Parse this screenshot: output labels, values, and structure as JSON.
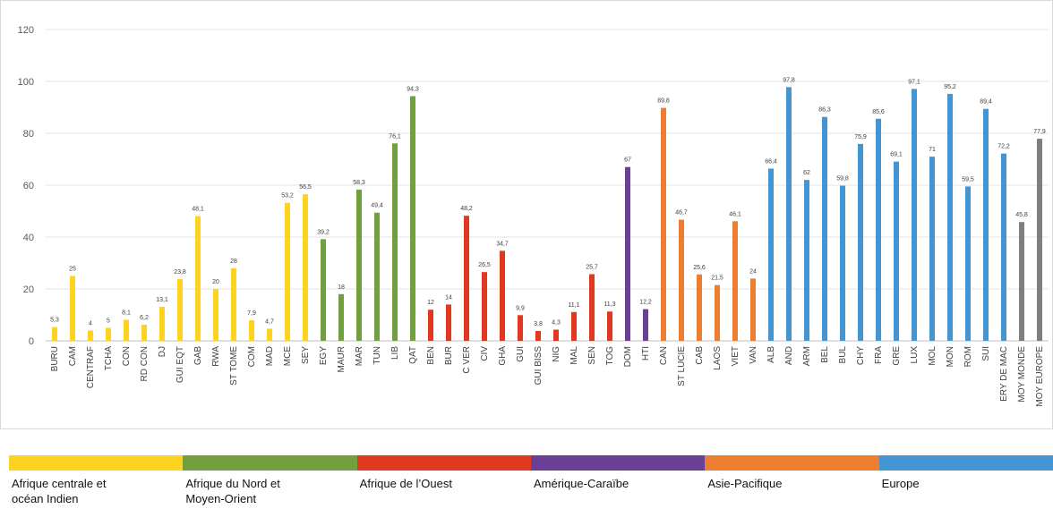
{
  "chart_data": {
    "type": "bar",
    "ylim": [
      0,
      120
    ],
    "y_ticks": [
      "0",
      "20",
      "40",
      "60",
      "80",
      "100",
      "120"
    ],
    "grid": true,
    "categories": [
      "BURU",
      "CAM",
      "CENTRAF",
      "TCHA",
      "CON",
      "RD CON",
      "DJ",
      "GUI EQT",
      "GAB",
      "RWA",
      "ST TOME",
      "COM",
      "MAD",
      "MCE",
      "SEY",
      "EGY",
      "MAUR",
      "MAR",
      "TUN",
      "LIB",
      "QAT",
      "BEN",
      "BUR",
      "C VER",
      "CIV",
      "GHA",
      "GUI",
      "GUI BISS",
      "NIG",
      "MAL",
      "SEN",
      "TOG",
      "DOM",
      "HTI",
      "CAN",
      "ST LUCIE",
      "CAB",
      "LAOS",
      "VIET",
      "VAN",
      "ALB",
      "AND",
      "ARM",
      "BEL",
      "BUL",
      "CHY",
      "FRA",
      "GRE",
      "LUX",
      "MOL",
      "MON",
      "ROM",
      "SUI",
      "ERY DE MAC",
      "MOY MONDE",
      "MOY EUROPE"
    ],
    "values": [
      5.3,
      25,
      4,
      5,
      8.1,
      6.2,
      13.1,
      23.8,
      48.1,
      20,
      28,
      7.9,
      4.7,
      53.2,
      56.5,
      39.2,
      18,
      58.3,
      49.4,
      76.1,
      94.3,
      12,
      14,
      48.2,
      26.5,
      34.7,
      9.9,
      3.8,
      4.3,
      11.1,
      25.7,
      11.3,
      67,
      12.2,
      89.8,
      46.7,
      25.6,
      21.5,
      46.1,
      24,
      66.4,
      97.8,
      62,
      86.3,
      59.8,
      75.9,
      85.6,
      69.1,
      97.1,
      71,
      95.2,
      59.5,
      89.4,
      72.2,
      45.8,
      77.9
    ],
    "labels": [
      "5,3",
      "25",
      "4",
      "5",
      "8,1",
      "6,2",
      "13,1",
      "23,8",
      "48,1",
      "20",
      "28",
      "7,9",
      "4,7",
      "53,2",
      "56,5",
      "39,2",
      "18",
      "58,3",
      "49,4",
      "76,1",
      "94,3",
      "12",
      "14",
      "48,2",
      "26,5",
      "34,7",
      "9,9",
      "3,8",
      "4,3",
      "11,1",
      "25,7",
      "11,3",
      "67",
      "12,2",
      "89,8",
      "46,7",
      "25,6",
      "21,5",
      "46,1",
      "24",
      "66,4",
      "97,8",
      "62",
      "86,3",
      "59,8",
      "75,9",
      "85,6",
      "69,1",
      "97,1",
      "71",
      "95,2",
      "59,5",
      "89,4",
      "72,2",
      "45,8",
      "77,9"
    ],
    "group_index": [
      0,
      0,
      0,
      0,
      0,
      0,
      0,
      0,
      0,
      0,
      0,
      0,
      0,
      0,
      0,
      1,
      1,
      1,
      1,
      1,
      1,
      2,
      2,
      2,
      2,
      2,
      2,
      2,
      2,
      2,
      2,
      2,
      3,
      3,
      4,
      4,
      4,
      4,
      4,
      4,
      5,
      5,
      5,
      5,
      5,
      5,
      5,
      5,
      5,
      5,
      5,
      5,
      5,
      5,
      6,
      6
    ],
    "groups": [
      {
        "name": "Afrique centrale et\nocéan Indien",
        "color": "#ffd21f"
      },
      {
        "name": "Afrique du Nord et\nMoyen-Orient",
        "color": "#70a13e"
      },
      {
        "name": "Afrique de l’Ouest",
        "color": "#e0391f"
      },
      {
        "name": "Amérique-Caraïbe",
        "color": "#6b3f98"
      },
      {
        "name": "Asie-Pacifique",
        "color": "#ed7d31"
      },
      {
        "name": "Europe",
        "color": "#4495d4"
      },
      {
        "name": "",
        "color": "#7f7f7f"
      }
    ]
  },
  "legend": {
    "items": [
      {
        "label": "Afrique centrale et\nocéan Indien",
        "color": "#ffd21f"
      },
      {
        "label": "Afrique du Nord et\nMoyen-Orient",
        "color": "#70a13e"
      },
      {
        "label": "Afrique de l’Ouest",
        "color": "#e0391f"
      },
      {
        "label": "Amérique-Caraïbe",
        "color": "#6b3f98"
      },
      {
        "label": "Asie-Pacifique",
        "color": "#ed7d31"
      },
      {
        "label": "Europe",
        "color": "#4495d4"
      }
    ]
  }
}
